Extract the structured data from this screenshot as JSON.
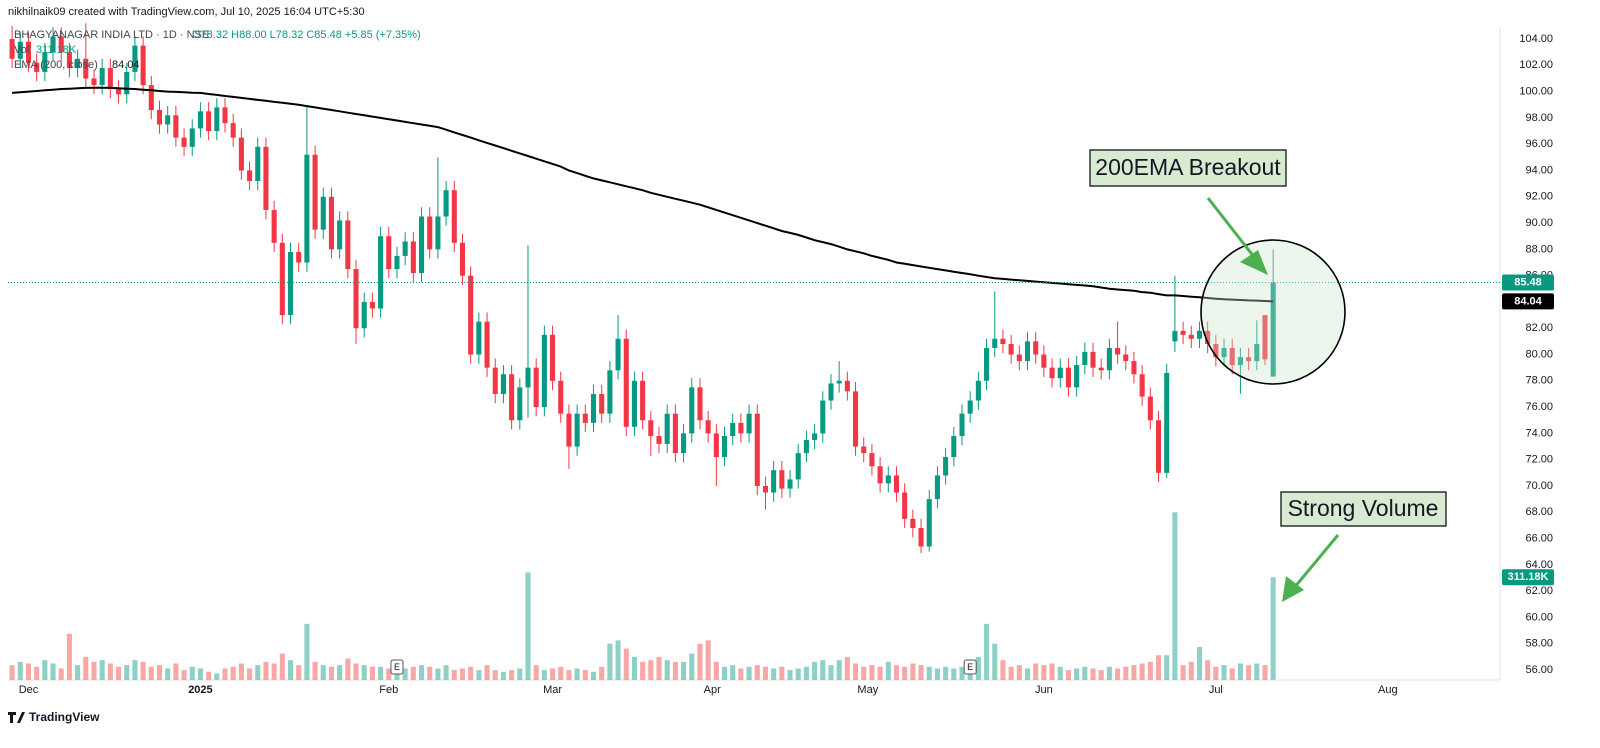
{
  "chart_data": {
    "type": "candlestick",
    "watermark": "nikhilnaik09 created with TradingView.com, Jul 10, 2025 16:04 UTC+5:30",
    "symbol": "BHAGYANAGAR INDIA LTD · 1D · NSE",
    "ohlc_text": "O78.32 H88.00 L78.32 C85.48 +5.85 (+7.35%)",
    "vol_label": "Vol",
    "vol_text": "311.18K",
    "ema_label": "EMA (200, close)",
    "ema_text": "84.04",
    "brand": "TradingView",
    "annotations": [
      "200EMA Breakout",
      "Strong Volume"
    ],
    "markers": [
      {
        "index": 47,
        "label": "E"
      },
      {
        "index": 117,
        "label": "E"
      }
    ],
    "up_color": "#089981",
    "down_color": "#f23645",
    "ema_color": "#000000",
    "volume_up_color": "#8fd0c6",
    "volume_down_color": "#f7a8a6",
    "grid": false,
    "xlim": [
      -0.5,
      181.7
    ],
    "xticks": [
      {
        "value": 2,
        "label": "Dec"
      },
      {
        "value": 23,
        "label": "2025"
      },
      {
        "value": 46,
        "label": "Feb"
      },
      {
        "value": 66,
        "label": "Mar"
      },
      {
        "value": 85.5,
        "label": "Apr"
      },
      {
        "value": 104.5,
        "label": "May"
      },
      {
        "value": 126,
        "label": "Jun"
      },
      {
        "value": 147,
        "label": "Jul"
      },
      {
        "value": 168,
        "label": "Aug"
      }
    ],
    "ylim": [
      55.24,
      104.84
    ],
    "yticks": [
      {
        "value": 56,
        "label": "56.00"
      },
      {
        "value": 58,
        "label": "58.00"
      },
      {
        "value": 60,
        "label": "60.00"
      },
      {
        "value": 62,
        "label": "62.00"
      },
      {
        "value": 64,
        "label": "64.00"
      },
      {
        "value": 66,
        "label": "66.00"
      },
      {
        "value": 68,
        "label": "68.00"
      },
      {
        "value": 70,
        "label": "70.00"
      },
      {
        "value": 72,
        "label": "72.00"
      },
      {
        "value": 74,
        "label": "74.00"
      },
      {
        "value": 76,
        "label": "76.00"
      },
      {
        "value": 78,
        "label": "78.00"
      },
      {
        "value": 80,
        "label": "80.00"
      },
      {
        "value": 82,
        "label": "82.00"
      },
      {
        "value": 84,
        "label": "84.00"
      },
      {
        "value": 86,
        "label": "86.00"
      },
      {
        "value": 88,
        "label": "88.00"
      },
      {
        "value": 90,
        "label": "90.00"
      },
      {
        "value": 92,
        "label": "92.00"
      },
      {
        "value": 94,
        "label": "94.00"
      },
      {
        "value": 96,
        "label": "96.00"
      },
      {
        "value": 98,
        "label": "98.00"
      },
      {
        "value": 100,
        "label": "100.00"
      },
      {
        "value": 102,
        "label": "102.00"
      },
      {
        "value": 104,
        "label": "104.00"
      }
    ],
    "vlim": [
      0,
      1975
    ],
    "last_price": {
      "value": 85.48,
      "label": "85.48"
    },
    "ema_last": {
      "value": 84.04,
      "label": "84.04"
    },
    "volume_last": {
      "value": 311.18,
      "label": "311.18K"
    },
    "open": [
      104.0,
      102.5,
      103.8,
      102.2,
      101.5,
      103.0,
      104.2,
      103.0,
      101.8,
      102.5,
      101.0,
      100.5,
      101.8,
      100.2,
      99.8,
      101.5,
      103.5,
      100.5,
      98.6,
      97.5,
      98.2,
      96.5,
      95.8,
      97.2,
      98.5,
      97.0,
      98.8,
      97.6,
      96.5,
      94.0,
      93.2,
      95.8,
      91.0,
      88.5,
      83.0,
      87.8,
      87.0,
      95.2,
      89.5,
      92.0,
      88.0,
      90.2,
      86.5,
      82.0,
      84.0,
      83.5,
      89.0,
      86.5,
      87.5,
      88.6,
      86.2,
      90.5,
      88.0,
      90.5,
      92.5,
      88.5,
      86.0,
      80.0,
      82.5,
      79.0,
      77.0,
      78.5,
      75.0,
      77.5,
      79.0,
      76.0,
      81.5,
      78.0,
      75.5,
      73.0,
      75.5,
      74.8,
      77.0,
      75.5,
      78.8,
      81.2,
      74.5,
      78.0,
      75.0,
      73.8,
      73.2,
      75.5,
      72.5,
      74.0,
      77.5,
      75.0,
      74.0,
      72.2,
      73.8,
      74.8,
      74.0,
      75.5,
      70.0,
      69.5,
      71.2,
      69.8,
      70.5,
      72.5,
      73.5,
      74.0,
      76.5,
      77.8,
      78.0,
      77.2,
      73.0,
      72.5,
      71.5,
      70.2,
      70.8,
      69.5,
      67.5,
      66.8,
      65.4,
      69.0,
      70.8,
      72.2,
      73.8,
      75.5,
      76.5,
      78.0,
      80.5,
      81.2,
      80.8,
      80.0,
      79.5,
      81.0,
      80.0,
      79.0,
      78.2,
      79.0,
      77.5,
      79.2,
      80.2,
      79.0,
      78.8,
      80.5,
      80.0,
      79.5,
      78.5,
      76.8,
      75.0,
      71.0,
      81.0,
      81.8,
      81.5,
      81.2,
      81.8,
      80.8,
      79.8,
      80.5,
      79.2,
      79.8,
      79.5,
      83.0,
      78.32
    ],
    "high": [
      105.0,
      104.5,
      104.5,
      102.9,
      103.7,
      104.9,
      104.9,
      103.7,
      103.2,
      105.2,
      101.7,
      102.5,
      102.5,
      100.9,
      102.2,
      104.2,
      104.2,
      101.2,
      99.3,
      98.9,
      98.9,
      97.2,
      97.9,
      99.2,
      99.2,
      99.5,
      99.5,
      98.3,
      97.2,
      94.7,
      96.5,
      96.5,
      91.7,
      89.2,
      88.5,
      88.5,
      98.8,
      95.9,
      92.7,
      92.7,
      90.9,
      90.9,
      87.2,
      84.7,
      84.7,
      89.7,
      89.7,
      88.2,
      89.3,
      89.3,
      91.2,
      91.2,
      95.0,
      93.2,
      93.2,
      89.2,
      86.7,
      83.2,
      83.2,
      79.7,
      79.2,
      79.2,
      78.2,
      88.3,
      79.7,
      82.2,
      82.2,
      78.7,
      76.2,
      76.2,
      76.2,
      77.7,
      77.7,
      79.5,
      83.0,
      81.9,
      78.7,
      78.7,
      75.7,
      74.5,
      76.2,
      76.2,
      74.7,
      78.2,
      78.2,
      75.7,
      74.7,
      74.5,
      75.5,
      75.5,
      76.2,
      76.2,
      70.7,
      71.9,
      71.9,
      71.2,
      73.2,
      74.2,
      74.7,
      77.2,
      78.5,
      79.5,
      78.7,
      77.9,
      73.7,
      73.2,
      72.2,
      71.5,
      71.5,
      70.2,
      68.2,
      67.5,
      69.7,
      71.5,
      72.9,
      74.5,
      76.2,
      77.2,
      78.7,
      81.2,
      84.8,
      81.9,
      81.5,
      80.7,
      81.7,
      81.7,
      80.7,
      79.7,
      79.7,
      79.7,
      79.9,
      80.9,
      80.9,
      79.7,
      81.2,
      82.5,
      80.7,
      80.2,
      79.2,
      77.5,
      75.7,
      79.3,
      86.0,
      82.5,
      82.2,
      82.5,
      82.5,
      81.5,
      81.2,
      81.2,
      80.5,
      80.5,
      82.6,
      83.0,
      88.0
    ],
    "low": [
      101.8,
      101.8,
      101.5,
      100.8,
      100.8,
      102.3,
      102.3,
      101.1,
      101.1,
      100.3,
      99.8,
      99.8,
      99.5,
      99.1,
      99.1,
      100.8,
      99.8,
      97.9,
      96.8,
      96.8,
      95.8,
      95.1,
      95.1,
      96.5,
      96.3,
      96.3,
      96.9,
      95.8,
      93.3,
      92.5,
      92.5,
      90.3,
      87.8,
      82.3,
      82.3,
      86.3,
      86.3,
      88.8,
      88.8,
      87.3,
      87.3,
      85.8,
      80.8,
      81.3,
      82.8,
      82.8,
      85.8,
      85.8,
      86.8,
      85.5,
      85.5,
      87.3,
      87.3,
      89.8,
      87.8,
      85.3,
      79.3,
      79.3,
      78.3,
      76.3,
      76.3,
      74.3,
      74.3,
      75.2,
      75.3,
      75.3,
      77.3,
      74.8,
      71.3,
      72.3,
      74.1,
      74.1,
      74.8,
      74.8,
      78.1,
      73.8,
      73.8,
      74.3,
      72.3,
      72.5,
      72.5,
      71.8,
      71.8,
      73.3,
      74.3,
      73.3,
      70.0,
      71.5,
      73.1,
      73.3,
      73.3,
      69.3,
      68.2,
      68.8,
      69.1,
      69.1,
      69.8,
      71.8,
      72.8,
      73.3,
      75.8,
      77.1,
      76.5,
      72.3,
      71.8,
      70.8,
      69.5,
      69.5,
      68.8,
      66.8,
      66.1,
      64.9,
      65.0,
      68.3,
      70.1,
      71.5,
      73.1,
      74.8,
      75.8,
      77.3,
      79.8,
      80.1,
      79.3,
      78.8,
      78.8,
      79.3,
      78.3,
      77.5,
      77.5,
      76.8,
      76.8,
      78.5,
      78.3,
      78.1,
      78.1,
      79.3,
      78.8,
      77.8,
      76.1,
      74.3,
      70.3,
      70.6,
      80.2,
      80.8,
      80.5,
      80.5,
      80.1,
      79.1,
      79.1,
      78.5,
      77.0,
      78.8,
      78.8,
      79.2,
      78.32
    ],
    "close": [
      102.5,
      103.8,
      102.2,
      101.5,
      103.0,
      104.2,
      103.0,
      101.8,
      102.5,
      101.0,
      100.5,
      101.8,
      100.2,
      99.8,
      101.5,
      103.5,
      100.5,
      98.6,
      97.5,
      98.2,
      96.5,
      95.8,
      97.2,
      98.5,
      97.0,
      98.8,
      97.6,
      96.5,
      94.0,
      93.2,
      95.8,
      91.0,
      88.5,
      83.0,
      87.8,
      87.0,
      95.2,
      89.5,
      92.0,
      88.0,
      90.2,
      86.5,
      82.0,
      84.0,
      83.5,
      89.0,
      86.5,
      87.5,
      88.6,
      86.2,
      90.5,
      88.0,
      90.5,
      92.5,
      88.5,
      86.0,
      80.0,
      82.5,
      79.0,
      77.0,
      78.5,
      75.0,
      77.5,
      79.0,
      76.0,
      81.5,
      78.0,
      75.5,
      73.0,
      75.5,
      74.8,
      77.0,
      75.5,
      78.8,
      81.2,
      74.5,
      78.0,
      75.0,
      73.8,
      73.2,
      75.5,
      72.5,
      74.0,
      77.5,
      75.0,
      74.0,
      72.2,
      73.8,
      74.8,
      74.0,
      75.5,
      70.0,
      69.5,
      71.2,
      69.8,
      70.5,
      72.5,
      73.5,
      74.0,
      76.5,
      77.8,
      78.0,
      77.2,
      73.0,
      72.5,
      71.5,
      70.2,
      70.8,
      69.5,
      67.5,
      66.8,
      65.4,
      69.0,
      70.8,
      72.2,
      73.8,
      75.5,
      76.5,
      78.0,
      80.5,
      81.2,
      80.8,
      80.0,
      79.5,
      81.0,
      80.0,
      79.0,
      78.2,
      79.0,
      77.5,
      79.2,
      80.2,
      79.0,
      78.8,
      80.5,
      80.0,
      79.5,
      78.5,
      76.8,
      75.0,
      71.0,
      78.6,
      81.8,
      81.5,
      81.2,
      81.8,
      80.8,
      79.8,
      80.5,
      79.2,
      79.8,
      79.5,
      80.8,
      79.63,
      85.48
    ],
    "volume": [
      45,
      55,
      50,
      40,
      60,
      50,
      35,
      140,
      45,
      70,
      55,
      60,
      50,
      40,
      45,
      60,
      55,
      40,
      45,
      35,
      50,
      30,
      40,
      35,
      25,
      20,
      35,
      40,
      50,
      35,
      45,
      55,
      50,
      80,
      60,
      45,
      170,
      55,
      45,
      40,
      45,
      65,
      50,
      45,
      40,
      40,
      35,
      30,
      35,
      40,
      45,
      40,
      35,
      45,
      30,
      35,
      40,
      30,
      45,
      30,
      25,
      30,
      35,
      326,
      45,
      30,
      35,
      40,
      30,
      35,
      30,
      25,
      40,
      110,
      120,
      95,
      70,
      55,
      60,
      70,
      60,
      55,
      55,
      80,
      110,
      120,
      55,
      40,
      45,
      35,
      40,
      45,
      40,
      35,
      40,
      30,
      35,
      40,
      55,
      60,
      45,
      60,
      70,
      50,
      40,
      45,
      40,
      55,
      45,
      40,
      50,
      45,
      40,
      35,
      40,
      35,
      40,
      45,
      70,
      170,
      110,
      60,
      40,
      45,
      35,
      50,
      45,
      50,
      40,
      30,
      35,
      40,
      35,
      30,
      40,
      35,
      40,
      45,
      50,
      55,
      75,
      75,
      508,
      45,
      55,
      100,
      60,
      40,
      45,
      35,
      50,
      45,
      50,
      45,
      311.18
    ],
    "ema": [
      99.9,
      99.95,
      100.0,
      100.05,
      100.1,
      100.15,
      100.2,
      100.22,
      100.25,
      100.28,
      100.3,
      100.3,
      100.28,
      100.25,
      100.22,
      100.2,
      100.15,
      100.1,
      100.05,
      100.0,
      99.98,
      99.95,
      99.92,
      99.9,
      99.82,
      99.75,
      99.67,
      99.6,
      99.52,
      99.45,
      99.37,
      99.3,
      99.22,
      99.15,
      99.07,
      99.0,
      98.9,
      98.8,
      98.7,
      98.6,
      98.5,
      98.4,
      98.3,
      98.2,
      98.1,
      98.0,
      97.9,
      97.8,
      97.7,
      97.6,
      97.5,
      97.4,
      97.3,
      97.1,
      96.9,
      96.7,
      96.5,
      96.3,
      96.1,
      95.9,
      95.7,
      95.5,
      95.3,
      95.1,
      94.9,
      94.7,
      94.5,
      94.3,
      94.0,
      93.8,
      93.6,
      93.4,
      93.25,
      93.1,
      92.95,
      92.8,
      92.65,
      92.5,
      92.3,
      92.15,
      92.0,
      91.85,
      91.7,
      91.55,
      91.4,
      91.2,
      91.0,
      90.8,
      90.6,
      90.4,
      90.2,
      90.0,
      89.8,
      89.6,
      89.4,
      89.25,
      89.1,
      88.9,
      88.7,
      88.55,
      88.4,
      88.2,
      88.0,
      87.85,
      87.7,
      87.5,
      87.35,
      87.2,
      87.0,
      86.9,
      86.8,
      86.7,
      86.6,
      86.5,
      86.4,
      86.3,
      86.2,
      86.1,
      86.0,
      85.9,
      85.8,
      85.75,
      85.7,
      85.65,
      85.6,
      85.55,
      85.5,
      85.45,
      85.4,
      85.35,
      85.3,
      85.25,
      85.2,
      85.1,
      85.0,
      84.95,
      84.9,
      84.85,
      84.75,
      84.7,
      84.6,
      84.5,
      84.5,
      84.45,
      84.4,
      84.35,
      84.3,
      84.25,
      84.2,
      84.18,
      84.15,
      84.12,
      84.1,
      84.07,
      84.04
    ]
  }
}
